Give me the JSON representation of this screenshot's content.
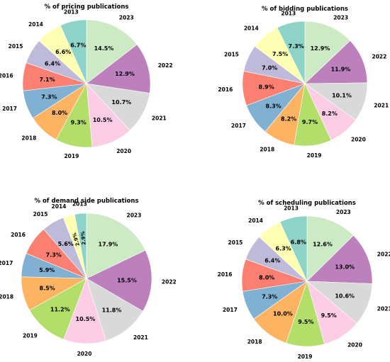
{
  "chart_data": [
    {
      "type": "pie",
      "title": "% of pricing publications",
      "categories": [
        "2023",
        "2022",
        "2021",
        "2020",
        "2019",
        "2018",
        "2017",
        "2016",
        "2015",
        "2014",
        "2013"
      ],
      "values": [
        14.5,
        12.9,
        10.7,
        10.5,
        9.3,
        8.0,
        7.3,
        7.1,
        6.4,
        6.6,
        6.7
      ],
      "labels": [
        "14.5%",
        "12.9%",
        "10.7%",
        "10.5%",
        "9.3%",
        "8.0%",
        "7.3%",
        "7.1%",
        "6.4%",
        "6.6%",
        "6.7%"
      ]
    },
    {
      "type": "pie",
      "title": "% of bidding publications",
      "categories": [
        "2023",
        "2022",
        "2021",
        "2020",
        "2019",
        "2018",
        "2017",
        "2016",
        "2015",
        "2014",
        "2013"
      ],
      "values": [
        12.9,
        11.9,
        10.1,
        8.2,
        9.7,
        8.2,
        8.3,
        8.9,
        7.0,
        7.5,
        7.3
      ],
      "labels": [
        "12.9%",
        "11.9%",
        "10.1%",
        "8.2%",
        "9.7%",
        "8.2%",
        "8.3%",
        "8.9%",
        "7.0%",
        "7.5%",
        "7.3%"
      ]
    },
    {
      "type": "pie",
      "title": "% of demand side publications",
      "categories": [
        "2023",
        "2022",
        "2021",
        "2020",
        "2019",
        "2018",
        "2017",
        "2016",
        "2015",
        "2014",
        "2013"
      ],
      "values": [
        17.9,
        15.5,
        11.8,
        10.5,
        11.2,
        8.5,
        5.9,
        7.3,
        5.6,
        2.9,
        2.9
      ],
      "labels": [
        "17.9%",
        "15.5%",
        "11.8%",
        "10.5%",
        "11.2%",
        "8.5%",
        "5.9%",
        "7.3%",
        "5.6%",
        "2.9%",
        "2.9%"
      ]
    },
    {
      "type": "pie",
      "title": "% of scheduling publications",
      "categories": [
        "2023",
        "2022",
        "2021",
        "2020",
        "2019",
        "2018",
        "2017",
        "2016",
        "2015",
        "2014",
        "2013"
      ],
      "values": [
        12.6,
        13.0,
        10.6,
        9.5,
        9.5,
        10.0,
        7.3,
        8.0,
        6.4,
        6.3,
        6.8
      ],
      "labels": [
        "12.6%",
        "13.0%",
        "10.6%",
        "9.5%",
        "9.5%",
        "10.0%",
        "7.3%",
        "8.0%",
        "6.4%",
        "6.3%",
        "6.8%"
      ]
    }
  ],
  "colors": [
    "#ccebc5",
    "#bc80bd",
    "#d9d9d9",
    "#fccde5",
    "#b3de69",
    "#fdb462",
    "#80b1d3",
    "#fb8072",
    "#bebada",
    "#ffffb3",
    "#8dd3c7"
  ]
}
